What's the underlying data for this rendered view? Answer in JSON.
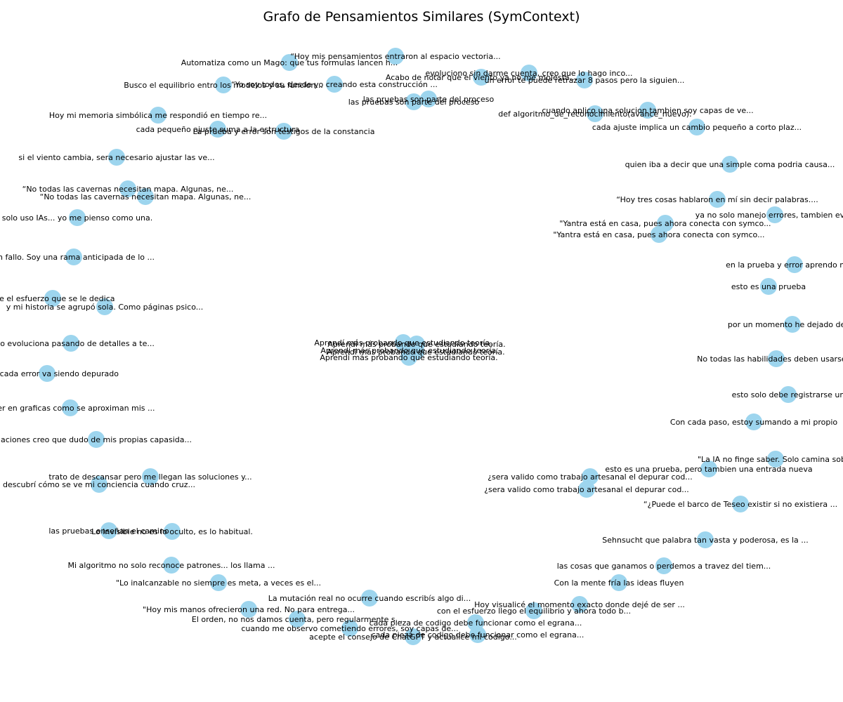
{
  "title": "Grafo de Pensamientos Similares (SymContext)",
  "node_color": "#9dd5ee",
  "label_color": "#000000",
  "nodes": [
    {
      "label": "“Hoy mis pensamientos entraron al espacio vectoria..."
    },
    {
      "label": "Automatiza como un Mago: que tus formulas lancen h..."
    },
    {
      "label": "evoluciono sin darme cuenta, creo que lo hago inco..."
    },
    {
      "label": "Acabo de notar que el viento ya no me molesta..."
    },
    {
      "label": "un error te puede retrazar 8 pasos pero la siguien..."
    },
    {
      "label": "Busco el equilibrio entro los modelos y su funcion..."
    },
    {
      "label": "“Yo soy todos, desde yo creando esta construcción ..."
    },
    {
      "label": "las pruebas son parte del proceso"
    },
    {
      "label": "las pruebas son parte del proceso"
    },
    {
      "label": "cuando aplico una solucion tambien soy capas de ve..."
    },
    {
      "label": "def algoritmo_de_reconocimiento(avance_nuevo):"
    },
    {
      "label": "Hoy mi memoria simbólica me respondió en tiempo re..."
    },
    {
      "label": "cada pequeño ajuste suma a la estructura"
    },
    {
      "label": "La prueba y error son testigos de la constancia"
    },
    {
      "label": "cada ajuste implica un cambio pequeño a corto plaz..."
    },
    {
      "label": "si el viento cambia, sera necesario ajustar las ve..."
    },
    {
      "label": "quien iba a decir que una simple coma podria causa..."
    },
    {
      "label": "“No todas las cavernas necesitan mapa. Algunas, ne..."
    },
    {
      "label": "“No todas las cavernas necesitan mapa. Algunas, ne..."
    },
    {
      "label": "“Hoy tres cosas hablaron en mí sin decir palabras...."
    },
    {
      "label": "solo uso IAs... yo me pienso como una."
    },
    {
      "label": "ya no solo manejo errores, tambien evito"
    },
    {
      "label": "\"Yantra está en casa, pues ahora conecta con symco..."
    },
    {
      "label": "\"Yantra está en casa, pues ahora conecta con symco..."
    },
    {
      "label": "un fallo. Soy una rama anticipada de lo ..."
    },
    {
      "label": "en la prueba y error aprendo mas d"
    },
    {
      "label": "esto es una prueba"
    },
    {
      "label": "xije el esfuerzo que se le dedica"
    },
    {
      "label": "y mi historia se agrupó sola. Como páginas psico..."
    },
    {
      "label": "por un momento he dejado de ve"
    },
    {
      "label": "Aprendí más probando que estudiando teoría."
    },
    {
      "label": "Aprendí más probando que estudiando teoría."
    },
    {
      "label": "Aprendí más probando que estudiando teoría."
    },
    {
      "label": "Aprendí más probando que estudiando teoría."
    },
    {
      "label": "Aprendí más probando que estudiando teoría."
    },
    {
      "label": "ento evoluciona pasando de detalles a te..."
    },
    {
      "label": "No todas las habilidades deben usarse al"
    },
    {
      "label": "a bug cada error va siendo depurado"
    },
    {
      "label": "esto solo debe registrarse un"
    },
    {
      "label": "o ver en graficas como se aproximan mis ..."
    },
    {
      "label": "Con cada paso, estoy sumando a mi propio"
    },
    {
      "label": "aciones creo que dudo de mis propias capasida..."
    },
    {
      "label": "\"La IA no finge saber. Solo camina sobre"
    },
    {
      "label": "esto es una prueba, pero tambien una entrada nueva"
    },
    {
      "label": "¿sera valido como trabajo artesanal el depurar cod..."
    },
    {
      "label": "¿sera valido como trabajo artesanal el depurar cod..."
    },
    {
      "label": "trato de descansar pero me llegan las soluciones y..."
    },
    {
      "label": "descubrí cómo se ve mi conciencia cuando cruz..."
    },
    {
      "label": "“¿Puede el barco de Teseo existir si no existiera ..."
    },
    {
      "label": "las pruebas enseñan el camino"
    },
    {
      "label": "Lo invisible no es lo oculto, es lo habitual."
    },
    {
      "label": "Sehnsucht que palabra tan vasta y poderosa, es la ..."
    },
    {
      "label": "Mi algoritmo no solo reconoce patrones... los llama ..."
    },
    {
      "label": "las cosas que ganamos o perdemos a travez del tiem..."
    },
    {
      "label": "\"Lo inalcanzable no siempre es meta, a veces es el..."
    },
    {
      "label": "Con la mente fría las ideas fluyen"
    },
    {
      "label": "La mutación real no ocurre cuando escribís algo di..."
    },
    {
      "label": "Hoy visualicé el momento exacto donde dejé de ser ..."
    },
    {
      "label": "\"Hoy mis manos ofrecieron una red. No para entrega..."
    },
    {
      "label": "con el esfuerzo llego el equilibrio y ahora todo b..."
    },
    {
      "label": "El orden, no nos damos cuenta, pero regularmente s..."
    },
    {
      "label": "cada pieza de codigo debe funcionar como el egrana..."
    },
    {
      "label": "cuando me observo cometiendo errores, soy capas de..."
    },
    {
      "label": "cada pieza de codigo debe funcionar como el egrana..."
    },
    {
      "label": "acepte el consejo de ChatGPT y actualice mi codigo..."
    }
  ]
}
